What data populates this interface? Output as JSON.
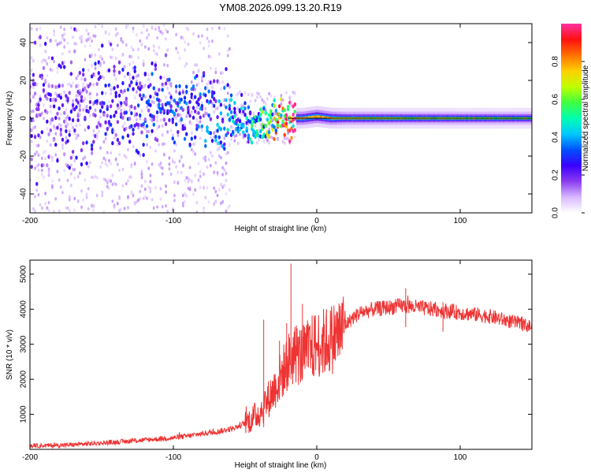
{
  "chart_data": [
    {
      "type": "heatmap",
      "title": "YM08.2026.099.13.20.R19",
      "xlabel": "Height of straight line (km)",
      "ylabel": "Frequency (Hz)",
      "xlim": [
        -200,
        150
      ],
      "ylim": [
        -50,
        50
      ],
      "x_ticks": [
        -200,
        -100,
        0,
        100
      ],
      "y_ticks": [
        -40,
        -20,
        0,
        20,
        40
      ],
      "reference_line_y": 0,
      "colorbar": {
        "label": "Normalized spectral amplitude",
        "range": [
          0.0,
          1.0
        ],
        "ticks": [
          "0.0",
          "0.2",
          "0.4",
          "0.6",
          "0.8"
        ],
        "colors": [
          "#ffffff",
          "#d8b8ff",
          "#8a3cf0",
          "#3a00ff",
          "#0050ff",
          "#00c8ff",
          "#00ffb0",
          "#40ff40",
          "#c0ff00",
          "#ffd000",
          "#ff7000",
          "#ff1010",
          "#ff30a0"
        ]
      },
      "ridge": {
        "x": [
          -200,
          -150,
          -100,
          -70,
          -50,
          -40,
          -30,
          -20,
          -10,
          0,
          10,
          20,
          150
        ],
        "frequency": [
          5,
          7,
          4,
          2,
          -2,
          -4,
          -1,
          0,
          0,
          1,
          0,
          0,
          0
        ],
        "peak_amplitude": [
          0.18,
          0.22,
          0.28,
          0.32,
          0.38,
          0.45,
          0.6,
          0.85,
          0.9,
          0.95,
          0.9,
          0.75,
          0.65
        ]
      }
    },
    {
      "type": "line",
      "xlabel": "Height of straight line (km)",
      "ylabel": "SNR (10 * v/v)",
      "xlim": [
        -200,
        150
      ],
      "ylim": [
        0,
        5400
      ],
      "x_ticks": [
        -200,
        -100,
        0,
        100
      ],
      "y_ticks": [
        1000,
        2000,
        3000,
        4000,
        5000
      ],
      "color": "#ee3333",
      "series": [
        {
          "name": "SNR",
          "x": [
            -200,
            -175,
            -150,
            -125,
            -100,
            -90,
            -80,
            -70,
            -60,
            -55,
            -50,
            -45,
            -40,
            -35,
            -30,
            -25,
            -20,
            -15,
            -10,
            -5,
            0,
            5,
            10,
            15,
            20,
            25,
            30,
            40,
            50,
            60,
            70,
            80,
            90,
            100,
            110,
            120,
            130,
            140,
            150
          ],
          "values": [
            100,
            120,
            180,
            250,
            330,
            380,
            450,
            500,
            580,
            650,
            750,
            880,
            1050,
            1350,
            1700,
            2100,
            2500,
            2750,
            2650,
            2850,
            3000,
            3050,
            3150,
            3300,
            3550,
            3750,
            3900,
            4000,
            4050,
            4100,
            4050,
            4000,
            3950,
            3900,
            3850,
            3800,
            3700,
            3600,
            3500
          ]
        }
      ],
      "spikes": [
        {
          "x": -37,
          "value": 3700
        },
        {
          "x": -26,
          "value": 3100
        },
        {
          "x": -21,
          "value": 3600
        },
        {
          "x": -18,
          "value": 5300
        },
        {
          "x": -10,
          "value": 4150
        },
        {
          "x": 62,
          "value": 4600
        },
        {
          "x": 88,
          "value": 4200
        }
      ]
    }
  ]
}
